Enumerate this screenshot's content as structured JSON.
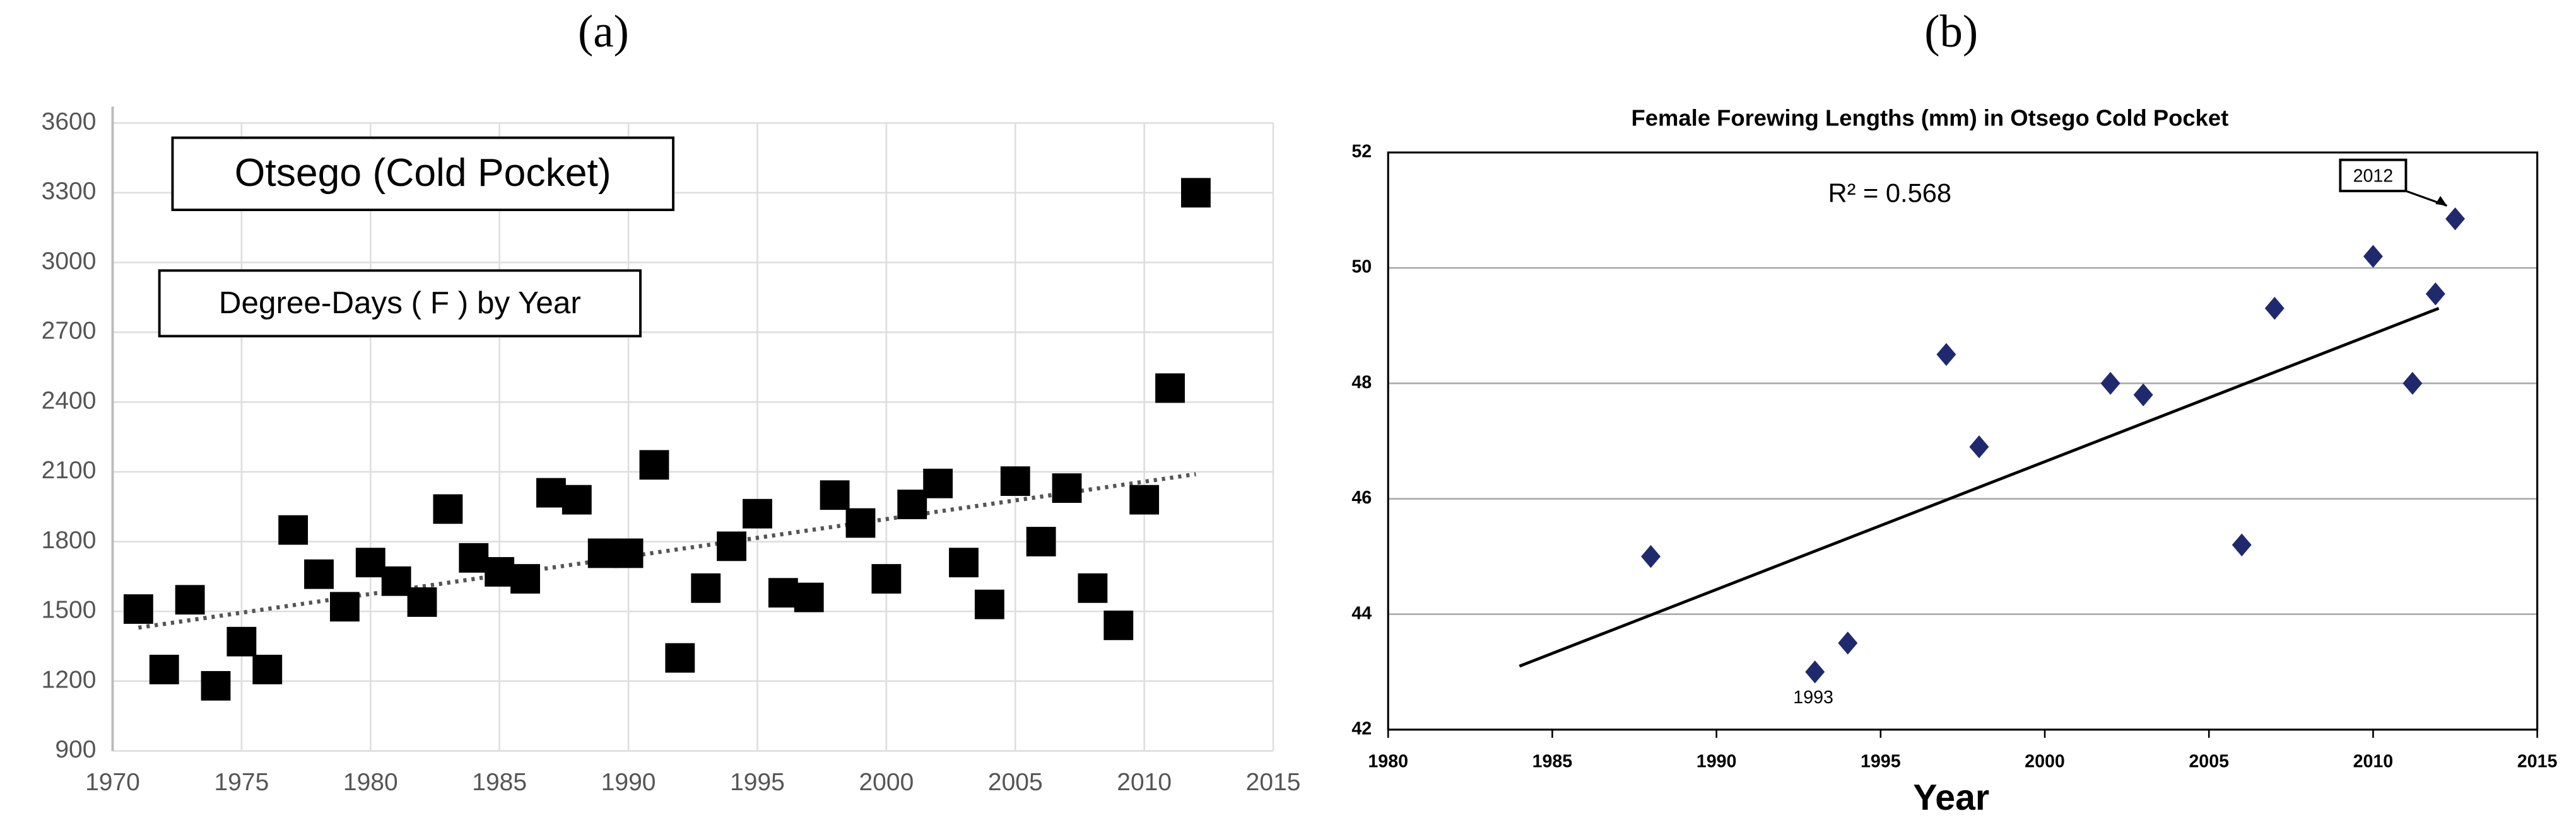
{
  "chart_data": [
    {
      "type": "scatter",
      "panel_label": "(a)",
      "marker": "square",
      "color": "#000000",
      "grid": "both",
      "annotations": [
        "Otsego (Cold Pocket)",
        "Degree-Days ( F ) by Year"
      ],
      "xlim": [
        1970,
        2015
      ],
      "xticks": [
        1970,
        1975,
        1980,
        1985,
        1990,
        1995,
        2000,
        2005,
        2010,
        2015
      ],
      "ylim": [
        900,
        3600
      ],
      "yticks": [
        900,
        1200,
        1500,
        1800,
        2100,
        2400,
        2700,
        3000,
        3300,
        3600
      ],
      "x": [
        1971,
        1972,
        1973,
        1974,
        1975,
        1976,
        1977,
        1978,
        1979,
        1980,
        1981,
        1982,
        1983,
        1984,
        1985,
        1986,
        1987,
        1988,
        1989,
        1990,
        1991,
        1992,
        1993,
        1994,
        1995,
        1996,
        1997,
        1998,
        1999,
        2000,
        2001,
        2002,
        2003,
        2004,
        2005,
        2006,
        2007,
        2008,
        2009,
        2010,
        2011,
        2012
      ],
      "values": [
        1510,
        1250,
        1550,
        1180,
        1370,
        1250,
        1850,
        1660,
        1520,
        1710,
        1630,
        1540,
        1940,
        1730,
        1670,
        1640,
        2010,
        1980,
        1750,
        1750,
        2130,
        1300,
        1600,
        1780,
        1920,
        1580,
        1560,
        2000,
        1880,
        1640,
        1960,
        2050,
        1710,
        1530,
        2060,
        1800,
        2030,
        1600,
        1440,
        1980,
        2460,
        3300
      ],
      "trendline": {
        "x": [
          1971,
          2012
        ],
        "y": [
          1430,
          2090
        ],
        "style": "dotted"
      }
    },
    {
      "type": "scatter",
      "panel_label": "(b)",
      "title": "Female Forewing Lengths (mm) in Otsego Cold Pocket",
      "xlabel": "Year",
      "marker": "diamond",
      "color": "#1f2a6e",
      "grid": "y",
      "annotations": [
        "R² = 0.568",
        "2012",
        "1993"
      ],
      "xlim": [
        1980,
        2015
      ],
      "xticks": [
        1980,
        1985,
        1990,
        1995,
        2000,
        2005,
        2010,
        2015
      ],
      "ylim": [
        42,
        52
      ],
      "yticks": [
        42,
        44,
        46,
        48,
        50,
        52
      ],
      "x": [
        1988,
        1993,
        1994,
        1997,
        1998,
        2002,
        2003,
        2006,
        2007,
        2010,
        2011.2,
        2011.9,
        2012.5
      ],
      "values": [
        45.0,
        43.0,
        43.5,
        48.5,
        46.9,
        48.0,
        47.8,
        45.2,
        49.3,
        50.2,
        48.0,
        49.55,
        50.85
      ],
      "trendline": {
        "x": [
          1984,
          2012
        ],
        "y": [
          43.1,
          49.3
        ],
        "style": "solid"
      }
    }
  ]
}
